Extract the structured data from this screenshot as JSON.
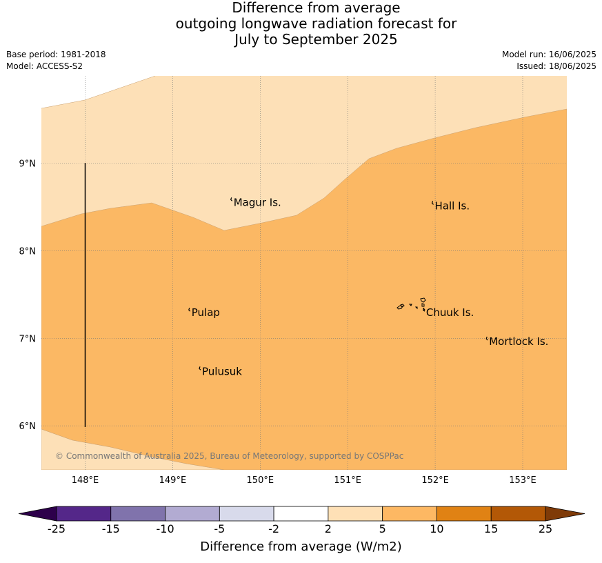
{
  "title": {
    "line1": "Difference from average",
    "line2": "outgoing longwave radiation forecast for",
    "line3": "July to September 2025"
  },
  "meta": {
    "base_period": "Base period: 1981-2018",
    "model": "Model: ACCESS-S2",
    "model_run": "Model run: 16/06/2025",
    "issued": "Issued: 18/06/2025"
  },
  "map": {
    "lon_range": [
      147.5,
      153.5
    ],
    "lat_range": [
      5.5,
      10.0
    ],
    "x_ticks": [
      {
        "value": 148,
        "label": "148°E"
      },
      {
        "value": 149,
        "label": "149°E"
      },
      {
        "value": 150,
        "label": "150°E"
      },
      {
        "value": 151,
        "label": "151°E"
      },
      {
        "value": 152,
        "label": "152°E"
      },
      {
        "value": 153,
        "label": "153°E"
      }
    ],
    "y_ticks": [
      {
        "value": 9,
        "label": "9°N"
      },
      {
        "value": 8,
        "label": "8°N"
      },
      {
        "value": 7,
        "label": "7°N"
      },
      {
        "value": 6,
        "label": "6°N"
      }
    ],
    "places": [
      {
        "name": "Magur Is.",
        "lon": 149.68,
        "lat": 8.56
      },
      {
        "name": "Hall Is.",
        "lon": 151.98,
        "lat": 8.52
      },
      {
        "name": "Pulap",
        "lon": 149.2,
        "lat": 7.3
      },
      {
        "name": "Chuuk Is.",
        "lon": 151.88,
        "lat": 7.3
      },
      {
        "name": "Mortlock Is.",
        "lon": 152.6,
        "lat": 6.97
      },
      {
        "name": "Pulusuk",
        "lon": 149.32,
        "lat": 6.63
      }
    ],
    "fill_colors": {
      "2-5": "#fde0b7",
      "5-10": "#fbb864"
    },
    "copyright": "© Commonwealth of Australia 2025, Bureau of Meteorology, supported by COSPPac"
  },
  "colorbar": {
    "labels": [
      "-25",
      "-15",
      "-10",
      "-5",
      "-2",
      "2",
      "5",
      "10",
      "15",
      "25"
    ],
    "colors": [
      "#542789",
      "#8073ac",
      "#b2abd2",
      "#d8daeb",
      "#ffffff",
      "#fee0b6",
      "#fdb863",
      "#e08214",
      "#b35806"
    ],
    "under_color": "#2d004b",
    "over_color": "#7f3b08",
    "label": "Difference from average (W/m2)"
  }
}
